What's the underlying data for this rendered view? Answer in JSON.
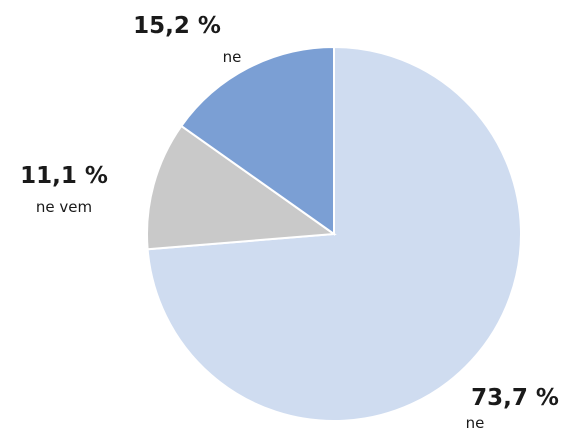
{
  "chart_data": {
    "type": "pie",
    "slices": [
      {
        "value": 73.7,
        "percent_label": "73,7 %",
        "category": "ne",
        "color": "#cfdcf0"
      },
      {
        "value": 11.1,
        "percent_label": "11,1 %",
        "category": "ne vem",
        "color": "#c9c9c9"
      },
      {
        "value": 15.2,
        "percent_label": "15,2 %",
        "category": "ne",
        "color": "#7b9fd4"
      }
    ],
    "legend": "none"
  }
}
